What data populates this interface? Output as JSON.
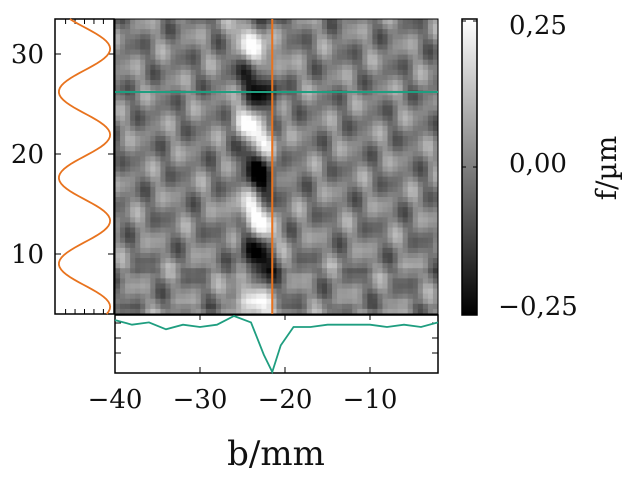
{
  "chart_data": {
    "type": "heatmap",
    "xlabel": "b/mm",
    "ylabel": "",
    "colorbar_label": "f/µm",
    "xlim": [
      -40,
      -2
    ],
    "ylim": [
      4,
      33.5
    ],
    "x_ticks": [
      -40,
      -30,
      -20,
      -10
    ],
    "x_tick_labels": [
      "−40",
      "−30",
      "−20",
      "−10"
    ],
    "y_ticks": [
      10,
      20,
      30
    ],
    "y_tick_labels": [
      "10",
      "20",
      "30"
    ],
    "colorbar_range": [
      -0.25,
      0.25
    ],
    "colorbar_ticks": [
      0.25,
      0.0,
      -0.25
    ],
    "colorbar_tick_labels": [
      "0,25",
      "0,00",
      "−0,25"
    ],
    "colormap": "grayscale",
    "crosshair": {
      "x": -21.5,
      "y": 26.2
    },
    "vertical_profile_color": "#e8731e",
    "horizontal_profile_color": "#1f9e80",
    "left_profile": {
      "description_values": "sinusoidal profile along the vertical cut at x=-21.5",
      "y": [
        4,
        6,
        8,
        10,
        12,
        14,
        16,
        18,
        20,
        22,
        24,
        26,
        28,
        30,
        32,
        33.5
      ],
      "value": [
        0.1,
        -0.7,
        -0.9,
        0.2,
        0.95,
        0.1,
        -0.95,
        -0.2,
        0.85,
        0.3,
        -0.8,
        -0.75,
        0.3,
        0.95,
        0.3,
        -0.1
      ]
    },
    "bottom_profile": {
      "x": [
        -40,
        -38,
        -36,
        -34,
        -32,
        -30,
        -28,
        -26,
        -24,
        -22.5,
        -21.5,
        -20.5,
        -19,
        -17,
        -15,
        -12,
        -10,
        -8,
        -6,
        -4,
        -2
      ],
      "value": [
        0.15,
        0.05,
        0.1,
        -0.05,
        0.05,
        0.0,
        0.05,
        0.3,
        0.1,
        -0.6,
        -1.0,
        -0.4,
        0.0,
        0.0,
        0.05,
        0.05,
        0.05,
        0.0,
        0.05,
        0.0,
        0.1
      ]
    }
  }
}
